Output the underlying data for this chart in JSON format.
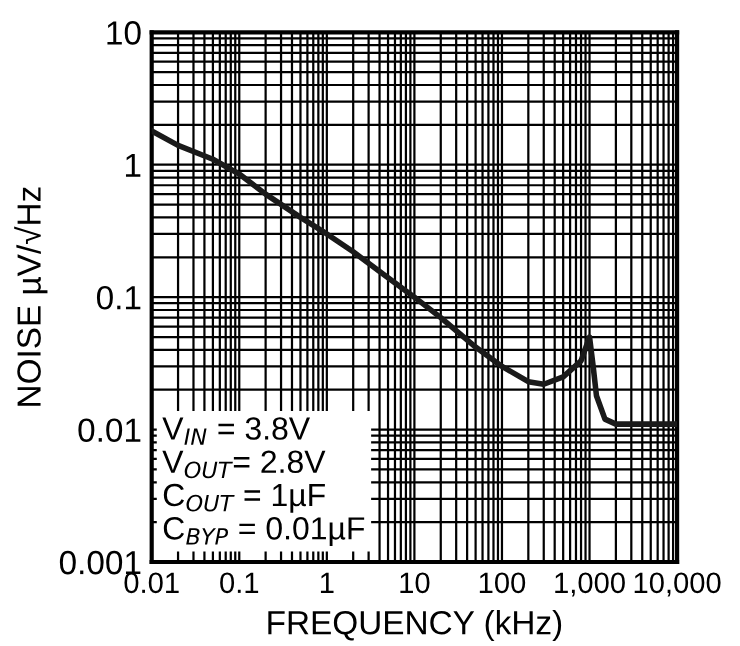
{
  "chart_data": {
    "type": "line",
    "xlabel": "FREQUENCY (kHz)",
    "ylabel": "NOISE µV/√Hz",
    "log": "xy",
    "grid": true,
    "marker": "none",
    "line_style": "solid",
    "x": [
      0.01,
      0.02,
      0.05,
      0.1,
      0.2,
      0.5,
      1,
      2,
      5,
      10,
      20,
      50,
      100,
      200,
      300,
      500,
      800,
      1000,
      1100,
      1200,
      1500,
      2000,
      5000,
      10000
    ],
    "series": [
      {
        "color": "#1a1a1a",
        "values": [
          1.8,
          1.4,
          1.1,
          0.85,
          0.6,
          0.4,
          0.3,
          0.22,
          0.14,
          0.1,
          0.07,
          0.042,
          0.03,
          0.023,
          0.022,
          0.025,
          0.033,
          0.05,
          0.03,
          0.018,
          0.012,
          0.011,
          0.011,
          0.011
        ]
      }
    ],
    "xlim": [
      0.01,
      10000
    ],
    "ylim": [
      0.001,
      10
    ],
    "xticks": [
      0.01,
      0.1,
      1,
      10,
      100,
      {
        "value": 1000,
        "label": "1,000"
      },
      {
        "value": 10000,
        "label": "10,000"
      }
    ],
    "yticks": [
      0.001,
      0.01,
      0.1,
      1,
      10
    ],
    "annotations": [
      "V$_{IN}$ = 3.8V\nV$_{OUT}$= 2.8V\nC$_{OUT}$ = 1µF\nC$_{BYP}$ = 0.01µF"
    ]
  }
}
